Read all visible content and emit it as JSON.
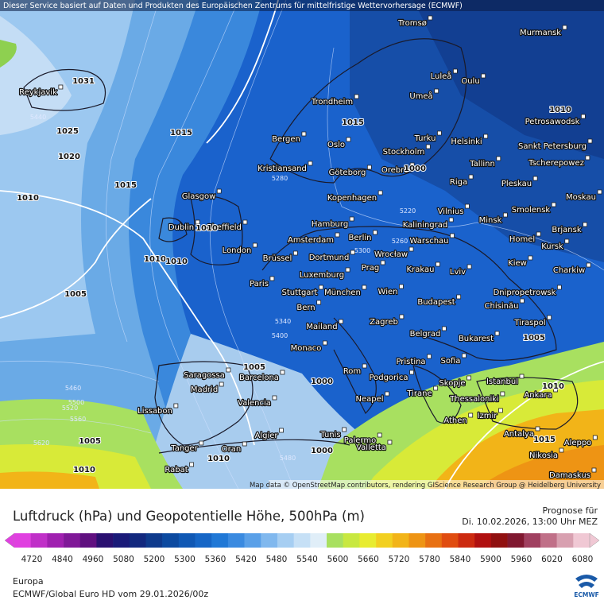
{
  "header": "Dieser Service basiert auf Daten und Produkten des Europäischen Zentrums für mittelfristige Wettervorhersage (ECMWF)",
  "attribution": "Map data © OpenStreetMap contributors, rendering GIScience Research Group @ Heidelberg University",
  "cities": [
    "Tromsø",
    "Murmansk",
    "Luleå",
    "Oulu",
    "Reykjavik",
    "Trondheim",
    "Umeå",
    "Petrosawodsk",
    "Bergen",
    "Turku",
    "Helsinki",
    "Sankt Petersburg",
    "Oslo",
    "Stockholm",
    "Tscherepowez",
    "Kristiansand",
    "Göteborg",
    "Orebro",
    "Tallinn",
    "Glasgow",
    "Kopenhagen",
    "Riga",
    "Pleskau",
    "Moskau",
    "Vilnius",
    "Smolensk",
    "Minsk",
    "Dublin",
    "Sheffield",
    "Hamburg",
    "Kaliningrad",
    "Brjansk",
    "Amsterdam",
    "Berlin",
    "Warschau",
    "Homel",
    "London",
    "Wrocław",
    "Kursk",
    "Brüssel",
    "Dortmund",
    "Kiew",
    "Prag",
    "Krakau",
    "Charkiw",
    "Paris",
    "Luxemburg",
    "Lviv",
    "Stuttgart",
    "München",
    "Wien",
    "Dnipropetrowsk",
    "Budapest",
    "Chisinău",
    "Bern",
    "Mailand",
    "Zagreb",
    "Tiraspol",
    "Belgrad",
    "Bukarest",
    "Monaco",
    "Pristina",
    "Sofia",
    "Saragossa",
    "Rom",
    "Podgorica",
    "Barcelona",
    "Skopje",
    "Istanbul",
    "Madrid",
    "Tirane",
    "Ankara",
    "Thessaloniki",
    "Valencia",
    "Neapel",
    "Lissabon",
    "Izmir",
    "Athen",
    "Palermo",
    "Algier",
    "Tunis",
    "Antalya",
    "Aleppo",
    "Tanger",
    "Oran",
    "Valletta",
    "Nikosia",
    "Rabat",
    "Damaskus"
  ],
  "pressure_labels": [
    "1031",
    "1025",
    "1020",
    "1015",
    "1010",
    "1010",
    "1010",
    "1005",
    "1005",
    "1015",
    "1010",
    "1000",
    "1000",
    "1005",
    "1010",
    "1015",
    "1010",
    "1000",
    "1010",
    "1005",
    "1015",
    "1010"
  ],
  "height_labels": [
    "5440",
    "5280",
    "5220",
    "5260",
    "5300",
    "5340",
    "5400",
    "5460",
    "5500",
    "5560",
    "5620",
    "5480",
    "5520"
  ],
  "legend": {
    "title": "Luftdruck (hPa) und Geopotentielle Höhe, 500hPa (m)",
    "forecast_label": "Prognose für",
    "forecast_time": "Di. 10.02.2026, 13:00 Uhr MEZ",
    "ticks": [
      "4720",
      "4840",
      "4960",
      "5080",
      "5200",
      "5300",
      "5360",
      "5420",
      "5480",
      "5540",
      "5600",
      "5660",
      "5720",
      "5780",
      "5840",
      "5900",
      "5960",
      "6020",
      "6080"
    ],
    "colors": [
      "#e040e0",
      "#c030c8",
      "#a020b0",
      "#801898",
      "#601080",
      "#2a1070",
      "#1a1a78",
      "#12287e",
      "#0e3a8c",
      "#0c4aa0",
      "#1058b4",
      "#1666c6",
      "#2078d6",
      "#3a8ae0",
      "#5aa0e8",
      "#80b8ee",
      "#a6cef2",
      "#c6e0f6",
      "#e0eef8",
      "#a8e060",
      "#c8e840",
      "#e8ec30",
      "#f2d020",
      "#f2b418",
      "#ee9414",
      "#e87012",
      "#e04c10",
      "#cc2a10",
      "#b01010",
      "#901010",
      "#801830",
      "#a04060",
      "#c07088",
      "#d8a0b0",
      "#f0c8d4"
    ],
    "region": "Europa",
    "source": "ECMWF/Global Euro HD vom  29.01.2026/00z",
    "logo": "ECMWF"
  }
}
